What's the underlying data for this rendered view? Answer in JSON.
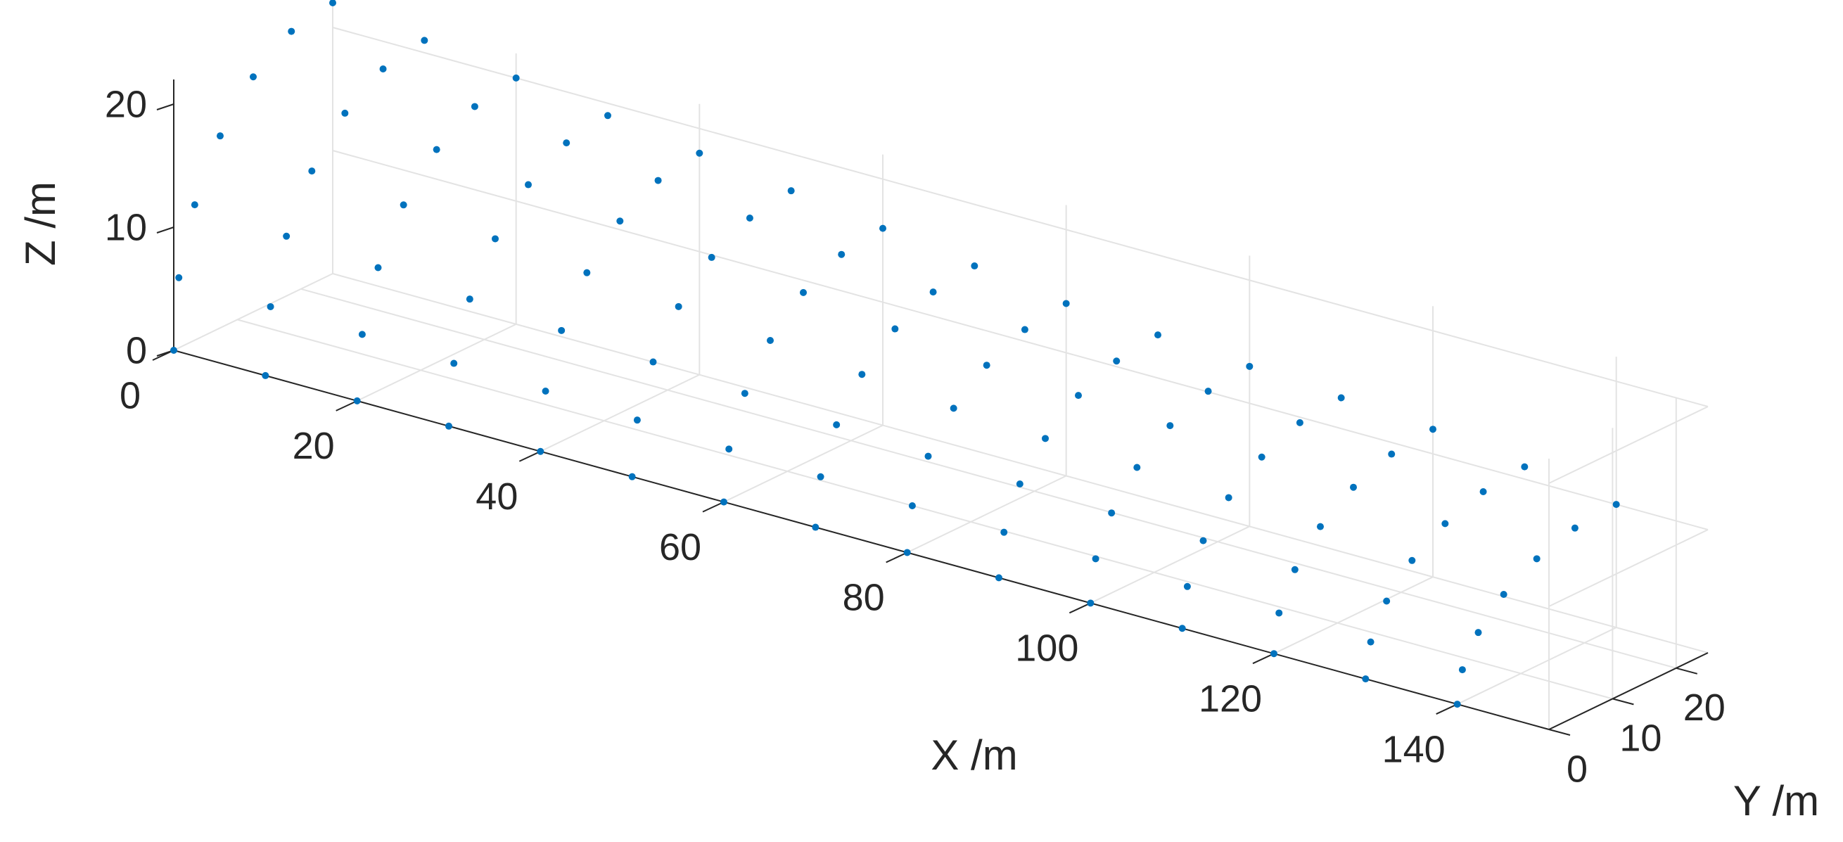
{
  "chart_data": {
    "type": "scatter3d",
    "xlabel": "X /m",
    "ylabel": "Y /m",
    "zlabel": "Z /m",
    "xlim": [
      0,
      150
    ],
    "ylim": [
      0,
      25
    ],
    "zlim": [
      0,
      22
    ],
    "xticks": [
      0,
      20,
      40,
      60,
      80,
      100,
      120,
      140
    ],
    "yticks": [
      0,
      10,
      20
    ],
    "zticks": [
      0,
      10,
      20
    ],
    "grid": true,
    "series": [
      {
        "color": "#0072bd",
        "x": [
          0,
          0,
          0,
          0,
          0,
          0,
          0,
          10,
          10,
          10,
          10,
          10,
          10,
          10,
          20,
          20,
          20,
          20,
          20,
          20,
          20,
          30,
          30,
          30,
          30,
          30,
          30,
          30,
          40,
          40,
          40,
          40,
          40,
          40,
          40,
          50,
          50,
          50,
          50,
          50,
          50,
          50,
          60,
          60,
          60,
          60,
          60,
          60,
          60,
          70,
          70,
          70,
          70,
          70,
          70,
          70,
          80,
          80,
          80,
          80,
          80,
          80,
          80,
          90,
          90,
          90,
          90,
          90,
          90,
          90,
          100,
          100,
          100,
          100,
          100,
          100,
          100,
          110,
          110,
          110,
          110,
          110,
          110,
          110,
          120,
          120,
          120,
          120,
          120,
          120,
          120,
          130,
          130,
          130,
          130,
          130,
          130,
          130,
          140,
          140,
          140,
          140,
          140,
          140,
          140
        ],
        "y": [
          0,
          0.8,
          3.3,
          7.3,
          12.5,
          18.5,
          25,
          0,
          0.8,
          3.3,
          7.3,
          12.5,
          18.5,
          25,
          0,
          0.8,
          3.3,
          7.3,
          12.5,
          18.5,
          25,
          0,
          0.8,
          3.3,
          7.3,
          12.5,
          18.5,
          25,
          0,
          0.8,
          3.3,
          7.3,
          12.5,
          18.5,
          25,
          0,
          0.8,
          3.3,
          7.3,
          12.5,
          18.5,
          25,
          0,
          0.8,
          3.3,
          7.3,
          12.5,
          18.5,
          25,
          0,
          0.8,
          3.3,
          7.3,
          12.5,
          18.5,
          25,
          0,
          0.8,
          3.3,
          7.3,
          12.5,
          18.5,
          25,
          0,
          0.8,
          3.3,
          7.3,
          12.5,
          18.5,
          25,
          0,
          0.8,
          3.3,
          7.3,
          12.5,
          18.5,
          25,
          0,
          0.8,
          3.3,
          7.3,
          12.5,
          18.5,
          25,
          0,
          0.8,
          3.3,
          7.3,
          12.5,
          18.5,
          25,
          0,
          0.8,
          3.3,
          7.3,
          12.5,
          18.5,
          25,
          0,
          0.8,
          3.3,
          7.3,
          12.5,
          18.5,
          25
        ],
        "z": [
          0,
          5.7,
          11,
          15.6,
          19.1,
          21.3,
          22,
          0,
          5.4,
          10.5,
          14.8,
          18.2,
          20.3,
          21,
          0,
          5.2,
          10,
          14.1,
          17.3,
          19.3,
          20,
          0,
          4.9,
          9.5,
          13.4,
          16.5,
          18.4,
          19,
          0,
          4.7,
          9,
          12.7,
          15.6,
          17.4,
          18,
          0,
          4.4,
          8.5,
          12,
          14.7,
          16.4,
          17,
          0,
          4.1,
          8,
          11.3,
          13.9,
          15.5,
          16,
          0,
          3.9,
          7.5,
          10.6,
          13,
          14.5,
          15,
          0,
          3.6,
          7,
          9.9,
          12.1,
          13.5,
          14,
          0,
          3.5,
          6.8,
          9.5,
          11.7,
          13,
          13.5,
          0,
          3.4,
          6.5,
          9.2,
          11.3,
          12.6,
          13,
          0,
          3.2,
          6.3,
          8.8,
          10.8,
          12.1,
          12.5,
          0,
          3.1,
          6,
          8.5,
          10.4,
          11.6,
          12,
          0,
          2.8,
          5.5,
          7.8,
          9.5,
          10.6,
          11,
          0,
          2.6,
          5,
          7.1,
          8.7,
          9.7,
          10
        ]
      }
    ]
  }
}
